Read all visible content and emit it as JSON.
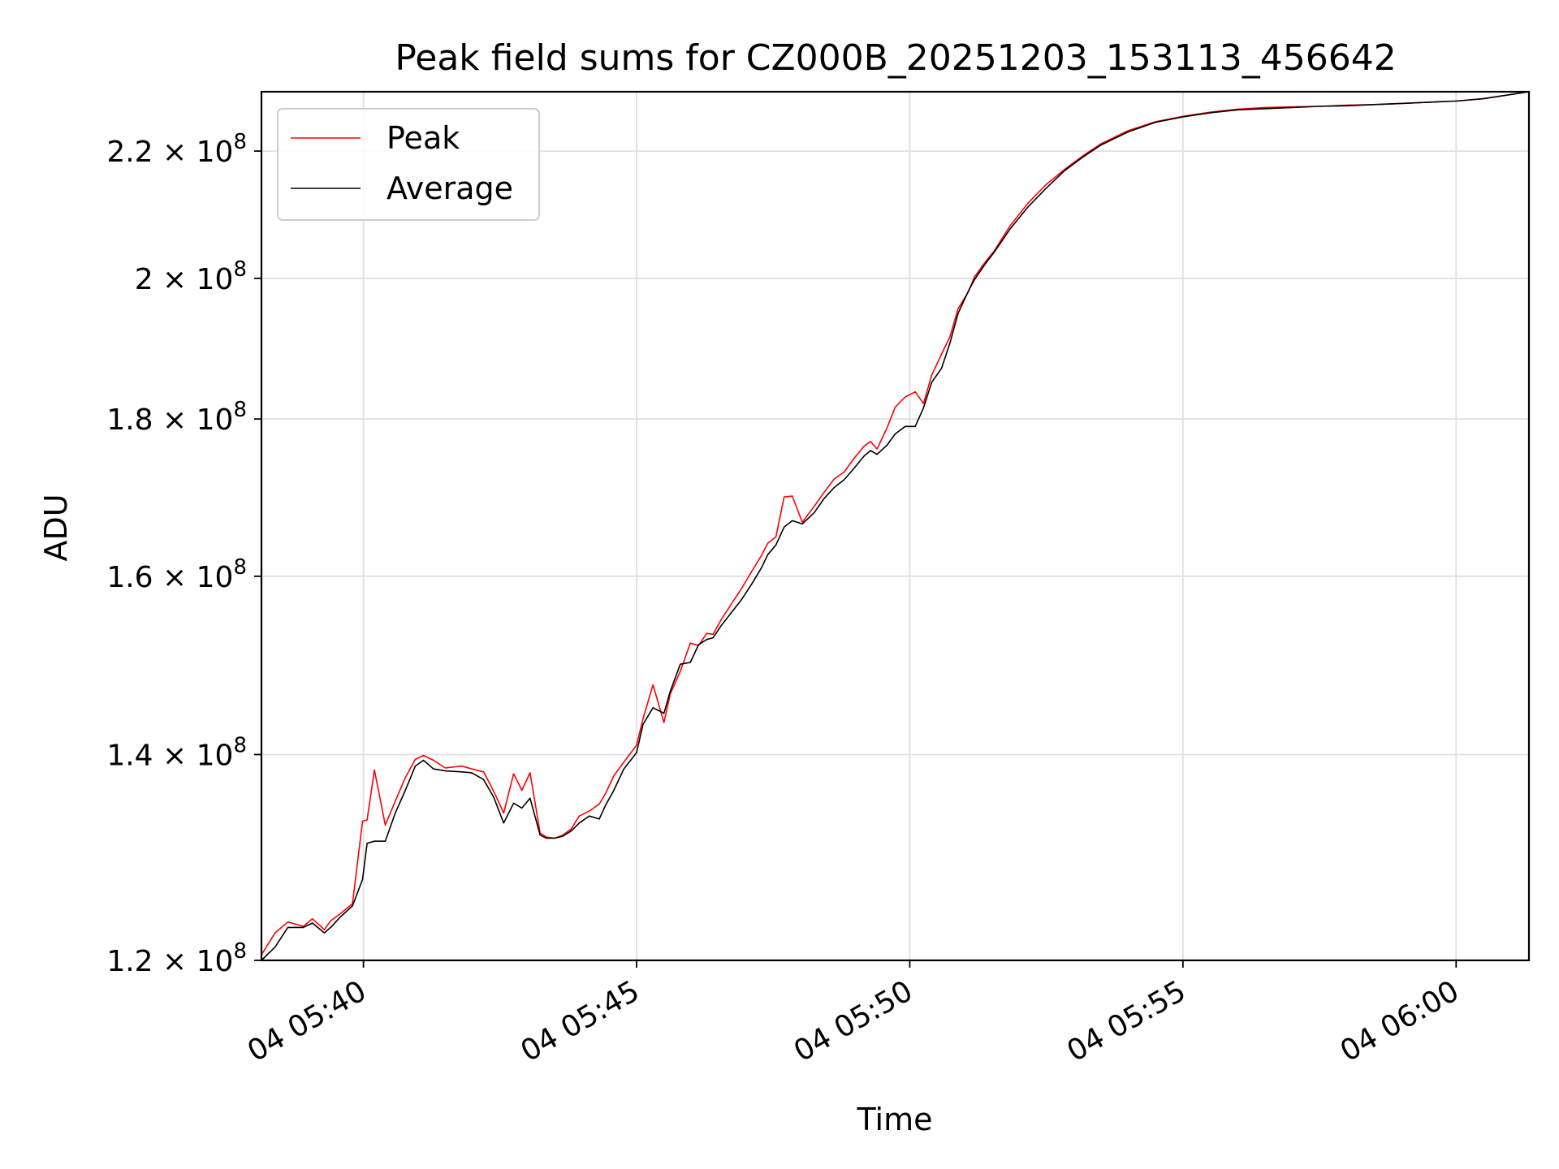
{
  "chart_data": {
    "type": "line",
    "title": "Peak field sums for CZ000B_20251203_153113_456642",
    "xlabel": "Time",
    "ylabel": "ADU",
    "y_scale": "log",
    "xlim": [
      "05:38:08",
      "06:01:20"
    ],
    "ylim": [
      120000000,
      230000000
    ],
    "x_ticks": [
      {
        "t": "05:40:00",
        "label": "04 05:40"
      },
      {
        "t": "05:45:00",
        "label": "04 05:45"
      },
      {
        "t": "05:50:00",
        "label": "04 05:50"
      },
      {
        "t": "05:55:00",
        "label": "04 05:55"
      },
      {
        "t": "06:00:00",
        "label": "04 06:00"
      }
    ],
    "y_ticks": [
      {
        "value": 120000000,
        "mantissa": "1.2",
        "exponent": "8"
      },
      {
        "value": 140000000,
        "mantissa": "1.4",
        "exponent": "8"
      },
      {
        "value": 160000000,
        "mantissa": "1.6",
        "exponent": "8"
      },
      {
        "value": 180000000,
        "mantissa": "1.8",
        "exponent": "8"
      },
      {
        "value": 200000000,
        "mantissa": "2",
        "exponent": "8"
      },
      {
        "value": 220000000,
        "mantissa": "2.2",
        "exponent": "8"
      }
    ],
    "grid": true,
    "legend_position": "top-left",
    "x": [
      "05:38:08",
      "05:38:23",
      "05:38:37",
      "05:38:54",
      "05:39:04",
      "05:39:17",
      "05:39:24",
      "05:39:35",
      "05:39:48",
      "05:39:59",
      "05:40:04",
      "05:40:12",
      "05:40:24",
      "05:40:35",
      "05:40:46",
      "05:40:57",
      "05:41:06",
      "05:41:17",
      "05:41:30",
      "05:41:48",
      "05:41:59",
      "05:42:12",
      "05:42:23",
      "05:42:34",
      "05:42:45",
      "05:42:54",
      "05:43:03",
      "05:43:14",
      "05:43:21",
      "05:43:30",
      "05:43:39",
      "05:43:48",
      "05:43:57",
      "05:44:08",
      "05:44:19",
      "05:44:26",
      "05:44:35",
      "05:44:46",
      "05:45:00",
      "05:45:07",
      "05:45:18",
      "05:45:30",
      "05:45:37",
      "05:45:48",
      "05:45:59",
      "05:46:08",
      "05:46:17",
      "05:46:24",
      "05:46:33",
      "05:46:44",
      "05:46:55",
      "05:47:06",
      "05:47:17",
      "05:47:24",
      "05:47:33",
      "05:47:42",
      "05:47:51",
      "05:48:02",
      "05:48:15",
      "05:48:26",
      "05:48:37",
      "05:48:48",
      "05:48:59",
      "05:49:10",
      "05:49:17",
      "05:49:24",
      "05:49:35",
      "05:49:44",
      "05:49:55",
      "05:50:06",
      "05:50:15",
      "05:50:24",
      "05:50:35",
      "05:50:44",
      "05:50:53",
      "05:51:04",
      "05:51:11",
      "05:51:22",
      "05:51:33",
      "05:51:50",
      "05:52:10",
      "05:52:30",
      "05:52:50",
      "05:53:10",
      "05:53:30",
      "05:54:00",
      "05:54:30",
      "05:55:00",
      "05:55:30",
      "05:56:00",
      "05:56:30",
      "05:57:00",
      "05:57:30",
      "05:58:00",
      "05:58:30",
      "05:59:00",
      "05:59:30",
      "06:00:00",
      "06:00:30",
      "06:01:20"
    ],
    "series": [
      {
        "name": "Peak",
        "color": "#ff0000",
        "values": [
          120.5,
          122.5,
          123.5,
          123.1,
          123.8,
          122.8,
          123.6,
          124.3,
          125.2,
          133.2,
          133.3,
          138.4,
          132.8,
          135.2,
          137.6,
          139.5,
          139.9,
          139.4,
          138.6,
          138.8,
          138.5,
          138.2,
          136.2,
          134.0,
          138.0,
          136.3,
          138.1,
          132.0,
          131.6,
          131.5,
          131.8,
          132.4,
          133.7,
          134.2,
          134.9,
          136.0,
          137.8,
          139.2,
          141.0,
          143.8,
          147.5,
          143.4,
          146.5,
          149.0,
          152.2,
          151.9,
          153.3,
          153.2,
          154.9,
          156.7,
          158.5,
          160.5,
          162.5,
          164.0,
          164.8,
          169.8,
          169.9,
          166.6,
          168.6,
          170.4,
          172.1,
          173.0,
          174.8,
          176.4,
          177.0,
          176.0,
          178.8,
          181.6,
          183.0,
          183.7,
          182.1,
          186.0,
          189.0,
          191.4,
          195.5,
          197.9,
          200.2,
          202.3,
          204.2,
          208.0,
          211.6,
          214.6,
          217.0,
          219.2,
          221.2,
          223.4,
          224.9,
          225.8,
          226.5,
          227.0,
          227.3,
          227.4,
          227.5,
          227.7,
          227.8,
          228.0,
          228.2,
          228.4,
          228.8,
          230.0
        ]
      },
      {
        "name": "Average",
        "color": "#000000",
        "values": [
          120.0,
          121.2,
          123.0,
          123.0,
          123.4,
          122.5,
          123.0,
          124.0,
          125.0,
          127.5,
          131.0,
          131.2,
          131.2,
          134.0,
          136.3,
          138.8,
          139.4,
          138.5,
          138.3,
          138.2,
          138.1,
          137.4,
          135.6,
          133.0,
          135.0,
          134.5,
          135.5,
          131.8,
          131.5,
          131.5,
          131.7,
          132.2,
          133.0,
          133.7,
          133.4,
          134.8,
          136.3,
          138.5,
          140.2,
          143.2,
          145.0,
          144.4,
          146.8,
          149.8,
          150.0,
          152.0,
          152.6,
          152.8,
          154.2,
          155.7,
          157.2,
          159.0,
          161.0,
          162.6,
          163.8,
          166.0,
          166.8,
          166.4,
          167.8,
          169.6,
          171.0,
          172.0,
          173.5,
          175.1,
          175.8,
          175.3,
          176.5,
          178.0,
          179.0,
          179.0,
          181.5,
          185.0,
          187.0,
          190.5,
          194.8,
          198.0,
          199.8,
          202.0,
          204.0,
          207.5,
          211.0,
          214.0,
          216.8,
          219.0,
          221.0,
          223.2,
          224.8,
          225.7,
          226.4,
          226.9,
          227.1,
          227.3,
          227.5,
          227.6,
          227.8,
          228.0,
          228.2,
          228.4,
          228.8,
          230.0
        ]
      }
    ]
  }
}
